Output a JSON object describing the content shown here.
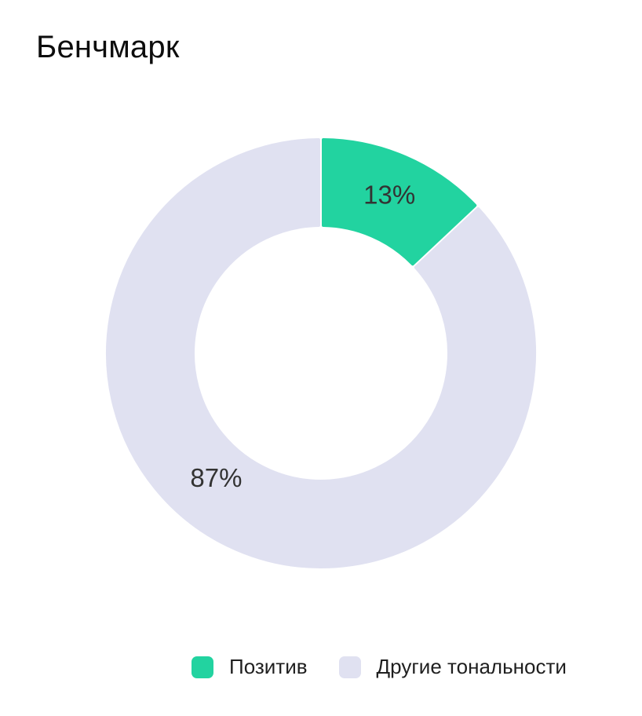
{
  "title": "Бенчмарк",
  "chart_data": {
    "type": "pie",
    "title": "Бенчмарк",
    "donut": true,
    "legend_position": "bottom-right",
    "slices": [
      {
        "name": "Позитив",
        "value": 13,
        "label": "13%",
        "color": "#22D3A0"
      },
      {
        "name": "Другие тональности",
        "value": 87,
        "label": "87%",
        "color": "#E0E1F1"
      }
    ]
  }
}
